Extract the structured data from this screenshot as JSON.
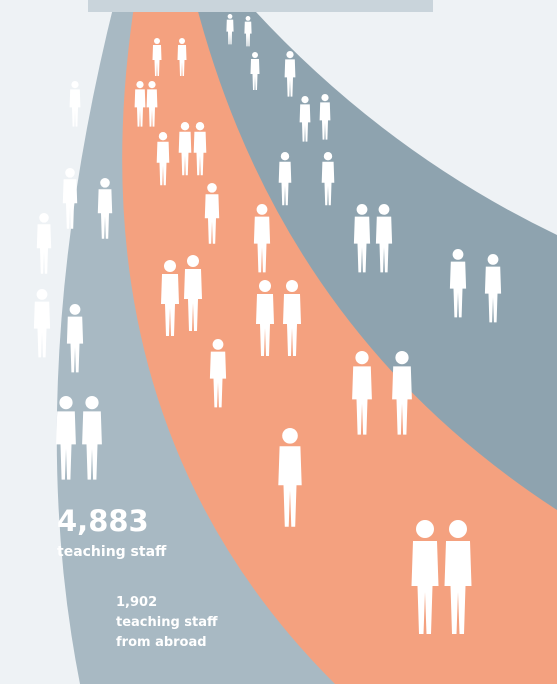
{
  "stats": [
    {
      "value": "4,883",
      "label_lines": [
        "teaching staff"
      ]
    },
    {
      "value": "1,902",
      "label_lines": [
        "teaching staff",
        "from abroad"
      ]
    }
  ]
}
